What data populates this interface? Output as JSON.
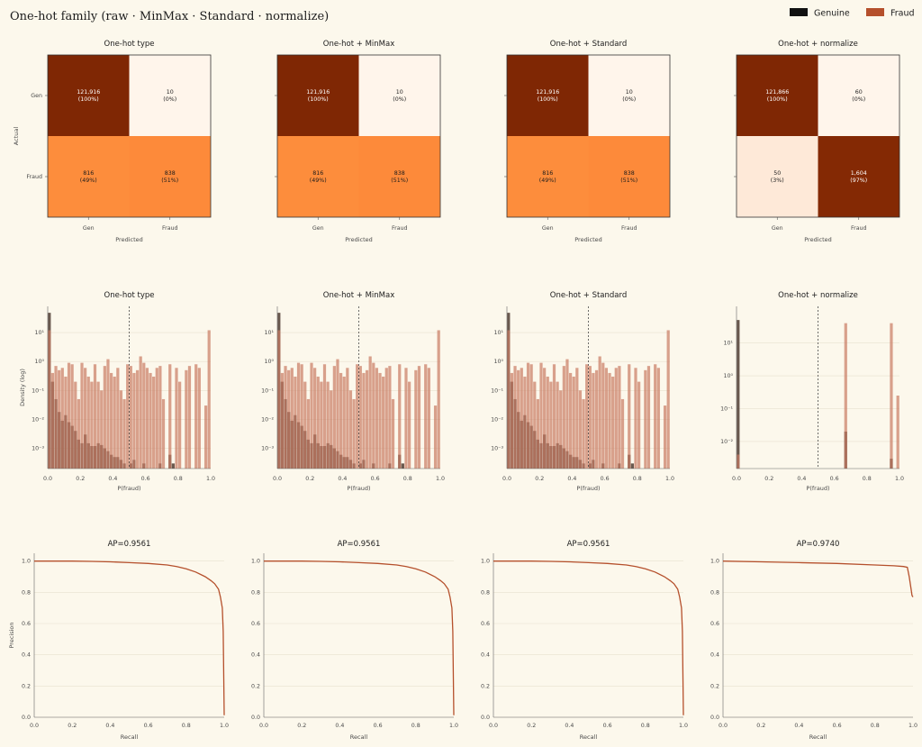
{
  "figure": {
    "title": "One-hot family (raw · MinMax · Standard · normalize)",
    "legend": [
      {
        "label": "Genuine",
        "color": "#111111"
      },
      {
        "label": "Fraud",
        "color": "#b5502c"
      }
    ]
  },
  "chart_data": [
    {
      "type": "heatmap",
      "panel": "cm",
      "title": "One-hot type",
      "xlabel": "Predicted",
      "ylabel": "Actual",
      "xticks": [
        "Gen",
        "Fraud"
      ],
      "yticks": [
        "Gen",
        "Fraud"
      ],
      "cells": [
        [
          {
            "count": "121,916",
            "pct": "(100%)",
            "color": "#7f2704",
            "text": "#ffffff"
          },
          {
            "count": "10",
            "pct": "(0%)",
            "color": "#fff5eb",
            "text": "#1c1c1c"
          }
        ],
        [
          {
            "count": "816",
            "pct": "(49%)",
            "color": "#fd8d3c",
            "text": "#1c1c1c"
          },
          {
            "count": "838",
            "pct": "(51%)",
            "color": "#fd8a3a",
            "text": "#1c1c1c"
          }
        ]
      ]
    },
    {
      "type": "heatmap",
      "panel": "cm",
      "title": "One-hot + MinMax",
      "xlabel": "Predicted",
      "ylabel": "",
      "xticks": [
        "Gen",
        "Fraud"
      ],
      "yticks": [
        "",
        ""
      ],
      "cells": [
        [
          {
            "count": "121,916",
            "pct": "(100%)",
            "color": "#7f2704",
            "text": "#ffffff"
          },
          {
            "count": "10",
            "pct": "(0%)",
            "color": "#fff5eb",
            "text": "#1c1c1c"
          }
        ],
        [
          {
            "count": "816",
            "pct": "(49%)",
            "color": "#fd8d3c",
            "text": "#1c1c1c"
          },
          {
            "count": "838",
            "pct": "(51%)",
            "color": "#fd8a3a",
            "text": "#1c1c1c"
          }
        ]
      ]
    },
    {
      "type": "heatmap",
      "panel": "cm",
      "title": "One-hot + Standard",
      "xlabel": "Predicted",
      "ylabel": "",
      "xticks": [
        "Gen",
        "Fraud"
      ],
      "yticks": [
        "",
        ""
      ],
      "cells": [
        [
          {
            "count": "121,916",
            "pct": "(100%)",
            "color": "#7f2704",
            "text": "#ffffff"
          },
          {
            "count": "10",
            "pct": "(0%)",
            "color": "#fff5eb",
            "text": "#1c1c1c"
          }
        ],
        [
          {
            "count": "816",
            "pct": "(49%)",
            "color": "#fd8d3c",
            "text": "#1c1c1c"
          },
          {
            "count": "838",
            "pct": "(51%)",
            "color": "#fd8a3a",
            "text": "#1c1c1c"
          }
        ]
      ]
    },
    {
      "type": "heatmap",
      "panel": "cm",
      "title": "One-hot + normalize",
      "xlabel": "Predicted",
      "ylabel": "",
      "xticks": [
        "Gen",
        "Fraud"
      ],
      "yticks": [
        "",
        ""
      ],
      "cells": [
        [
          {
            "count": "121,866",
            "pct": "(100%)",
            "color": "#7f2704",
            "text": "#ffffff"
          },
          {
            "count": "60",
            "pct": "(0%)",
            "color": "#fff5eb",
            "text": "#1c1c1c"
          }
        ],
        [
          {
            "count": "50",
            "pct": "(3%)",
            "color": "#fee9d8",
            "text": "#1c1c1c"
          },
          {
            "count": "1,604",
            "pct": "(97%)",
            "color": "#842904",
            "text": "#ffffff"
          }
        ]
      ]
    },
    {
      "type": "bar",
      "panel": "hist",
      "title": "One-hot type",
      "xlabel": "P(fraud)",
      "ylabel": "Density (log)",
      "log_y": true,
      "ylim": [
        0.0002,
        80
      ],
      "xlim": [
        0,
        1
      ],
      "xticks": [
        "0.0",
        "0.2",
        "0.4",
        "0.6",
        "0.8",
        "1.0"
      ],
      "yticks": [
        "10⁻³",
        "10⁻²",
        "10⁻¹",
        "10⁰",
        "10¹"
      ],
      "yvals": [
        0.001,
        0.01,
        0.1,
        1,
        10
      ],
      "threshold": 0.5,
      "bins": 50,
      "series": [
        {
          "name": "Genuine",
          "values": [
            48,
            0.2,
            0.05,
            0.018,
            0.009,
            0.014,
            0.008,
            0.006,
            0.004,
            0.002,
            0.0015,
            0.003,
            0.0015,
            0.0012,
            0.0012,
            0.0015,
            0.0013,
            0.001,
            0.0008,
            0.0006,
            0.0005,
            0.0005,
            0.0004,
            0.0003,
            0,
            0.0003,
            0.0004,
            0.0002,
            0.0002,
            0.0003,
            0,
            0,
            0,
            0,
            0.0003,
            0,
            0,
            0.0006,
            0.0003,
            0,
            0,
            0,
            0,
            0,
            0,
            0,
            0,
            0,
            0,
            0
          ]
        },
        {
          "name": "Fraud",
          "values": [
            12,
            0.4,
            0.7,
            0.5,
            0.6,
            0.3,
            0.9,
            0.8,
            0.2,
            0.05,
            0.9,
            0.6,
            0.3,
            0.2,
            0.8,
            0.2,
            0.1,
            0.7,
            1.2,
            0.4,
            0.3,
            0.6,
            0.1,
            0.05,
            0.8,
            0.7,
            0.4,
            0.5,
            1.5,
            0.9,
            0.6,
            0.4,
            0.3,
            0.6,
            0.7,
            0.05,
            0,
            0.8,
            0,
            0.6,
            0.2,
            0,
            0.5,
            0.7,
            0,
            0.8,
            0.6,
            0,
            0.03,
            12
          ]
        }
      ]
    },
    {
      "type": "bar",
      "panel": "hist",
      "title": "One-hot + MinMax",
      "xlabel": "P(fraud)",
      "ylabel": "",
      "log_y": true,
      "ylim": [
        0.0002,
        80
      ],
      "xlim": [
        0,
        1
      ],
      "xticks": [
        "0.0",
        "0.2",
        "0.4",
        "0.6",
        "0.8",
        "1.0"
      ],
      "yticks": [
        "10⁻³",
        "10⁻²",
        "10⁻¹",
        "10⁰",
        "10¹"
      ],
      "yvals": [
        0.001,
        0.01,
        0.1,
        1,
        10
      ],
      "threshold": 0.5,
      "bins": 50,
      "series": [
        {
          "name": "Genuine",
          "values": [
            48,
            0.2,
            0.05,
            0.018,
            0.009,
            0.014,
            0.008,
            0.006,
            0.004,
            0.002,
            0.0015,
            0.003,
            0.0015,
            0.0012,
            0.0012,
            0.0015,
            0.0013,
            0.001,
            0.0008,
            0.0006,
            0.0005,
            0.0005,
            0.0004,
            0.0003,
            0,
            0.0003,
            0.0004,
            0.0002,
            0.0002,
            0.0003,
            0,
            0,
            0,
            0,
            0.0003,
            0,
            0,
            0.0006,
            0.0003,
            0,
            0,
            0,
            0,
            0,
            0,
            0,
            0,
            0,
            0,
            0
          ]
        },
        {
          "name": "Fraud",
          "values": [
            12,
            0.4,
            0.7,
            0.5,
            0.6,
            0.3,
            0.9,
            0.8,
            0.2,
            0.05,
            0.9,
            0.6,
            0.3,
            0.2,
            0.8,
            0.2,
            0.1,
            0.7,
            1.2,
            0.4,
            0.3,
            0.6,
            0.1,
            0.05,
            0.8,
            0.7,
            0.4,
            0.5,
            1.5,
            0.9,
            0.6,
            0.4,
            0.3,
            0.6,
            0.7,
            0.05,
            0,
            0.8,
            0,
            0.6,
            0.2,
            0,
            0.5,
            0.7,
            0,
            0.8,
            0.6,
            0,
            0.03,
            12
          ]
        }
      ]
    },
    {
      "type": "bar",
      "panel": "hist",
      "title": "One-hot + Standard",
      "xlabel": "P(fraud)",
      "ylabel": "",
      "log_y": true,
      "ylim": [
        0.0002,
        80
      ],
      "xlim": [
        0,
        1
      ],
      "xticks": [
        "0.0",
        "0.2",
        "0.4",
        "0.6",
        "0.8",
        "1.0"
      ],
      "yticks": [
        "10⁻³",
        "10⁻²",
        "10⁻¹",
        "10⁰",
        "10¹"
      ],
      "yvals": [
        0.001,
        0.01,
        0.1,
        1,
        10
      ],
      "threshold": 0.5,
      "bins": 50,
      "series": [
        {
          "name": "Genuine",
          "values": [
            48,
            0.2,
            0.05,
            0.018,
            0.009,
            0.014,
            0.008,
            0.006,
            0.004,
            0.002,
            0.0015,
            0.003,
            0.0015,
            0.0012,
            0.0012,
            0.0015,
            0.0013,
            0.001,
            0.0008,
            0.0006,
            0.0005,
            0.0005,
            0.0004,
            0.0003,
            0,
            0.0003,
            0.0004,
            0.0002,
            0.0002,
            0.0003,
            0,
            0,
            0,
            0,
            0.0003,
            0,
            0,
            0.0006,
            0.0003,
            0,
            0,
            0,
            0,
            0,
            0,
            0,
            0,
            0,
            0,
            0
          ]
        },
        {
          "name": "Fraud",
          "values": [
            12,
            0.4,
            0.7,
            0.5,
            0.6,
            0.3,
            0.9,
            0.8,
            0.2,
            0.05,
            0.9,
            0.6,
            0.3,
            0.2,
            0.8,
            0.2,
            0.1,
            0.7,
            1.2,
            0.4,
            0.3,
            0.6,
            0.1,
            0.05,
            0.8,
            0.7,
            0.4,
            0.5,
            1.5,
            0.9,
            0.6,
            0.4,
            0.3,
            0.6,
            0.7,
            0.05,
            0,
            0.8,
            0,
            0.6,
            0.2,
            0,
            0.5,
            0.7,
            0,
            0.8,
            0.6,
            0,
            0.03,
            12
          ]
        }
      ]
    },
    {
      "type": "bar",
      "panel": "hist",
      "title": "One-hot + normalize",
      "xlabel": "P(fraud)",
      "ylabel": "",
      "log_y": true,
      "ylim": [
        0.0015,
        130
      ],
      "xlim": [
        0,
        1
      ],
      "xticks": [
        "0.0",
        "0.2",
        "0.4",
        "0.6",
        "0.8",
        "1.0"
      ],
      "yticks": [
        "10⁻²",
        "10⁻¹",
        "10⁰",
        "10¹"
      ],
      "yvals": [
        0.01,
        0.1,
        1,
        10
      ],
      "threshold": 0.5,
      "bins": 50,
      "series": [
        {
          "name": "Genuine",
          "values": [
            50,
            0,
            0,
            0,
            0,
            0,
            0,
            0,
            0,
            0,
            0,
            0,
            0,
            0,
            0,
            0,
            0,
            0,
            0,
            0,
            0,
            0,
            0,
            0,
            0,
            0,
            0,
            0,
            0,
            0,
            0,
            0,
            0,
            0.02,
            0,
            0,
            0,
            0,
            0,
            0,
            0,
            0,
            0,
            0,
            0,
            0,
            0,
            0.003,
            0,
            0
          ]
        },
        {
          "name": "Fraud",
          "values": [
            0.004,
            0,
            0,
            0,
            0,
            0,
            0,
            0,
            0,
            0,
            0,
            0,
            0,
            0,
            0,
            0,
            0,
            0,
            0,
            0,
            0,
            0,
            0,
            0,
            0,
            0,
            0,
            0,
            0,
            0,
            0,
            0,
            0,
            40,
            0,
            0,
            0,
            0,
            0,
            0,
            0,
            0,
            0,
            0,
            0,
            0,
            0,
            40,
            0,
            0.25
          ]
        }
      ]
    },
    {
      "type": "line",
      "panel": "pr",
      "title": "AP=0.9561",
      "xlabel": "Recall",
      "ylabel": "Precision",
      "xlim": [
        0,
        1
      ],
      "ylim": [
        0,
        1.05
      ],
      "xticks": [
        "0.0",
        "0.2",
        "0.4",
        "0.6",
        "0.8",
        "1.0"
      ],
      "yticks": [
        "0.0",
        "0.2",
        "0.4",
        "0.6",
        "0.8",
        "1.0"
      ],
      "series": [
        {
          "x": [
            0,
            0.1,
            0.2,
            0.3,
            0.4,
            0.5,
            0.6,
            0.7,
            0.75,
            0.8,
            0.85,
            0.9,
            0.93,
            0.95,
            0.97,
            0.98,
            0.99,
            0.995,
            1.0
          ],
          "y": [
            1,
            1,
            1,
            0.998,
            0.995,
            0.99,
            0.985,
            0.975,
            0.965,
            0.95,
            0.93,
            0.9,
            0.875,
            0.855,
            0.82,
            0.77,
            0.7,
            0.55,
            0.013
          ]
        }
      ]
    },
    {
      "type": "line",
      "panel": "pr",
      "title": "AP=0.9561",
      "xlabel": "Recall",
      "ylabel": "",
      "xlim": [
        0,
        1
      ],
      "ylim": [
        0,
        1.05
      ],
      "xticks": [
        "0.0",
        "0.2",
        "0.4",
        "0.6",
        "0.8",
        "1.0"
      ],
      "yticks": [
        "0.0",
        "0.2",
        "0.4",
        "0.6",
        "0.8",
        "1.0"
      ],
      "series": [
        {
          "x": [
            0,
            0.1,
            0.2,
            0.3,
            0.4,
            0.5,
            0.6,
            0.7,
            0.75,
            0.8,
            0.85,
            0.9,
            0.93,
            0.95,
            0.97,
            0.98,
            0.99,
            0.995,
            1.0
          ],
          "y": [
            1,
            1,
            1,
            0.998,
            0.995,
            0.99,
            0.985,
            0.975,
            0.965,
            0.95,
            0.93,
            0.9,
            0.875,
            0.855,
            0.82,
            0.77,
            0.7,
            0.55,
            0.013
          ]
        }
      ]
    },
    {
      "type": "line",
      "panel": "pr",
      "title": "AP=0.9561",
      "xlabel": "Recall",
      "ylabel": "",
      "xlim": [
        0,
        1
      ],
      "ylim": [
        0,
        1.05
      ],
      "xticks": [
        "0.0",
        "0.2",
        "0.4",
        "0.6",
        "0.8",
        "1.0"
      ],
      "yticks": [
        "0.0",
        "0.2",
        "0.4",
        "0.6",
        "0.8",
        "1.0"
      ],
      "series": [
        {
          "x": [
            0,
            0.1,
            0.2,
            0.3,
            0.4,
            0.5,
            0.6,
            0.7,
            0.75,
            0.8,
            0.85,
            0.9,
            0.93,
            0.95,
            0.97,
            0.98,
            0.99,
            0.995,
            1.0
          ],
          "y": [
            1,
            1,
            1,
            0.998,
            0.995,
            0.99,
            0.985,
            0.975,
            0.965,
            0.95,
            0.93,
            0.9,
            0.875,
            0.855,
            0.82,
            0.77,
            0.7,
            0.55,
            0.013
          ]
        }
      ]
    },
    {
      "type": "line",
      "panel": "pr",
      "title": "AP=0.9740",
      "xlabel": "Recall",
      "ylabel": "",
      "xlim": [
        0,
        1
      ],
      "ylim": [
        0,
        1.05
      ],
      "xticks": [
        "0.0",
        "0.2",
        "0.4",
        "0.6",
        "0.8",
        "1.0"
      ],
      "yticks": [
        "0.0",
        "0.2",
        "0.4",
        "0.6",
        "0.8",
        "1.0"
      ],
      "series": [
        {
          "x": [
            0,
            0.2,
            0.4,
            0.6,
            0.8,
            0.9,
            0.95,
            0.97,
            0.98,
            0.99,
            0.995,
            1.0
          ],
          "y": [
            1,
            0.995,
            0.99,
            0.985,
            0.975,
            0.97,
            0.965,
            0.96,
            0.9,
            0.82,
            0.78,
            0.77
          ]
        }
      ]
    }
  ]
}
